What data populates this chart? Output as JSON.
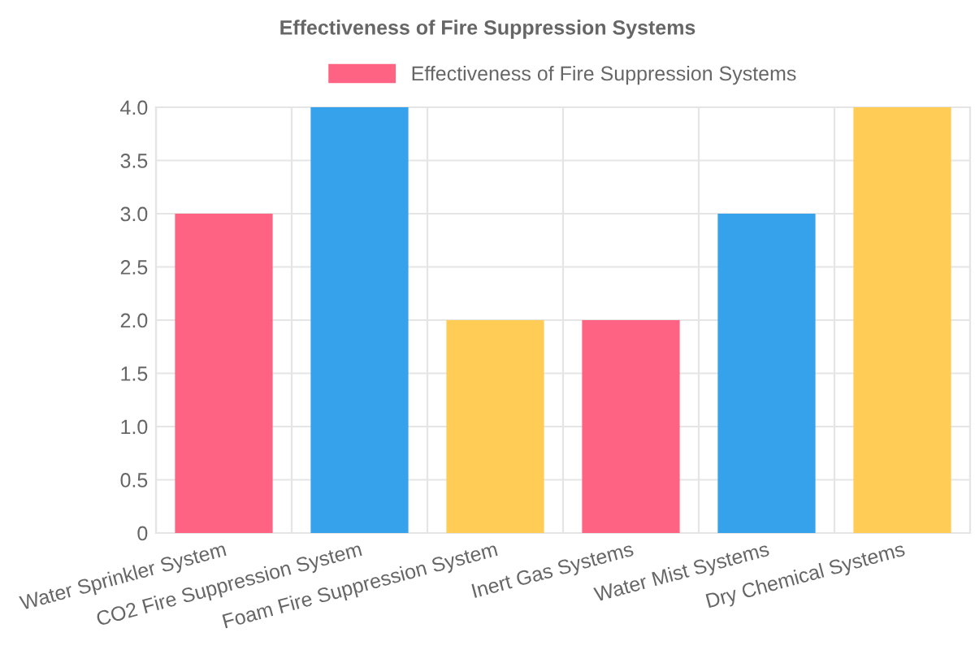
{
  "chart_data": {
    "type": "bar",
    "title": "Effectiveness of Fire Suppression Systems",
    "categories": [
      "Water Sprinkler System",
      "CO2 Fire Suppression System",
      "Foam Fire Suppression System",
      "Inert Gas Systems",
      "Water Mist Systems",
      "Dry Chemical Systems"
    ],
    "series": [
      {
        "name": "Effectiveness of Fire Suppression Systems",
        "colors": [
          "#ff6384",
          "#36a2eb",
          "#ffcd56",
          "#ff6384",
          "#36a2eb",
          "#ffcd56"
        ],
        "values": [
          3,
          4,
          2,
          2,
          3,
          4
        ]
      }
    ],
    "ylim": [
      0,
      4
    ],
    "yticks": [
      0,
      0.5,
      {
        "value": 1,
        "label": "1.0"
      },
      1.5,
      {
        "value": 2,
        "label": "2.0"
      },
      2.5,
      {
        "value": 3,
        "label": "3.0"
      },
      3.5,
      {
        "value": 4,
        "label": "4.0"
      }
    ],
    "grid": true,
    "legend": "top"
  }
}
